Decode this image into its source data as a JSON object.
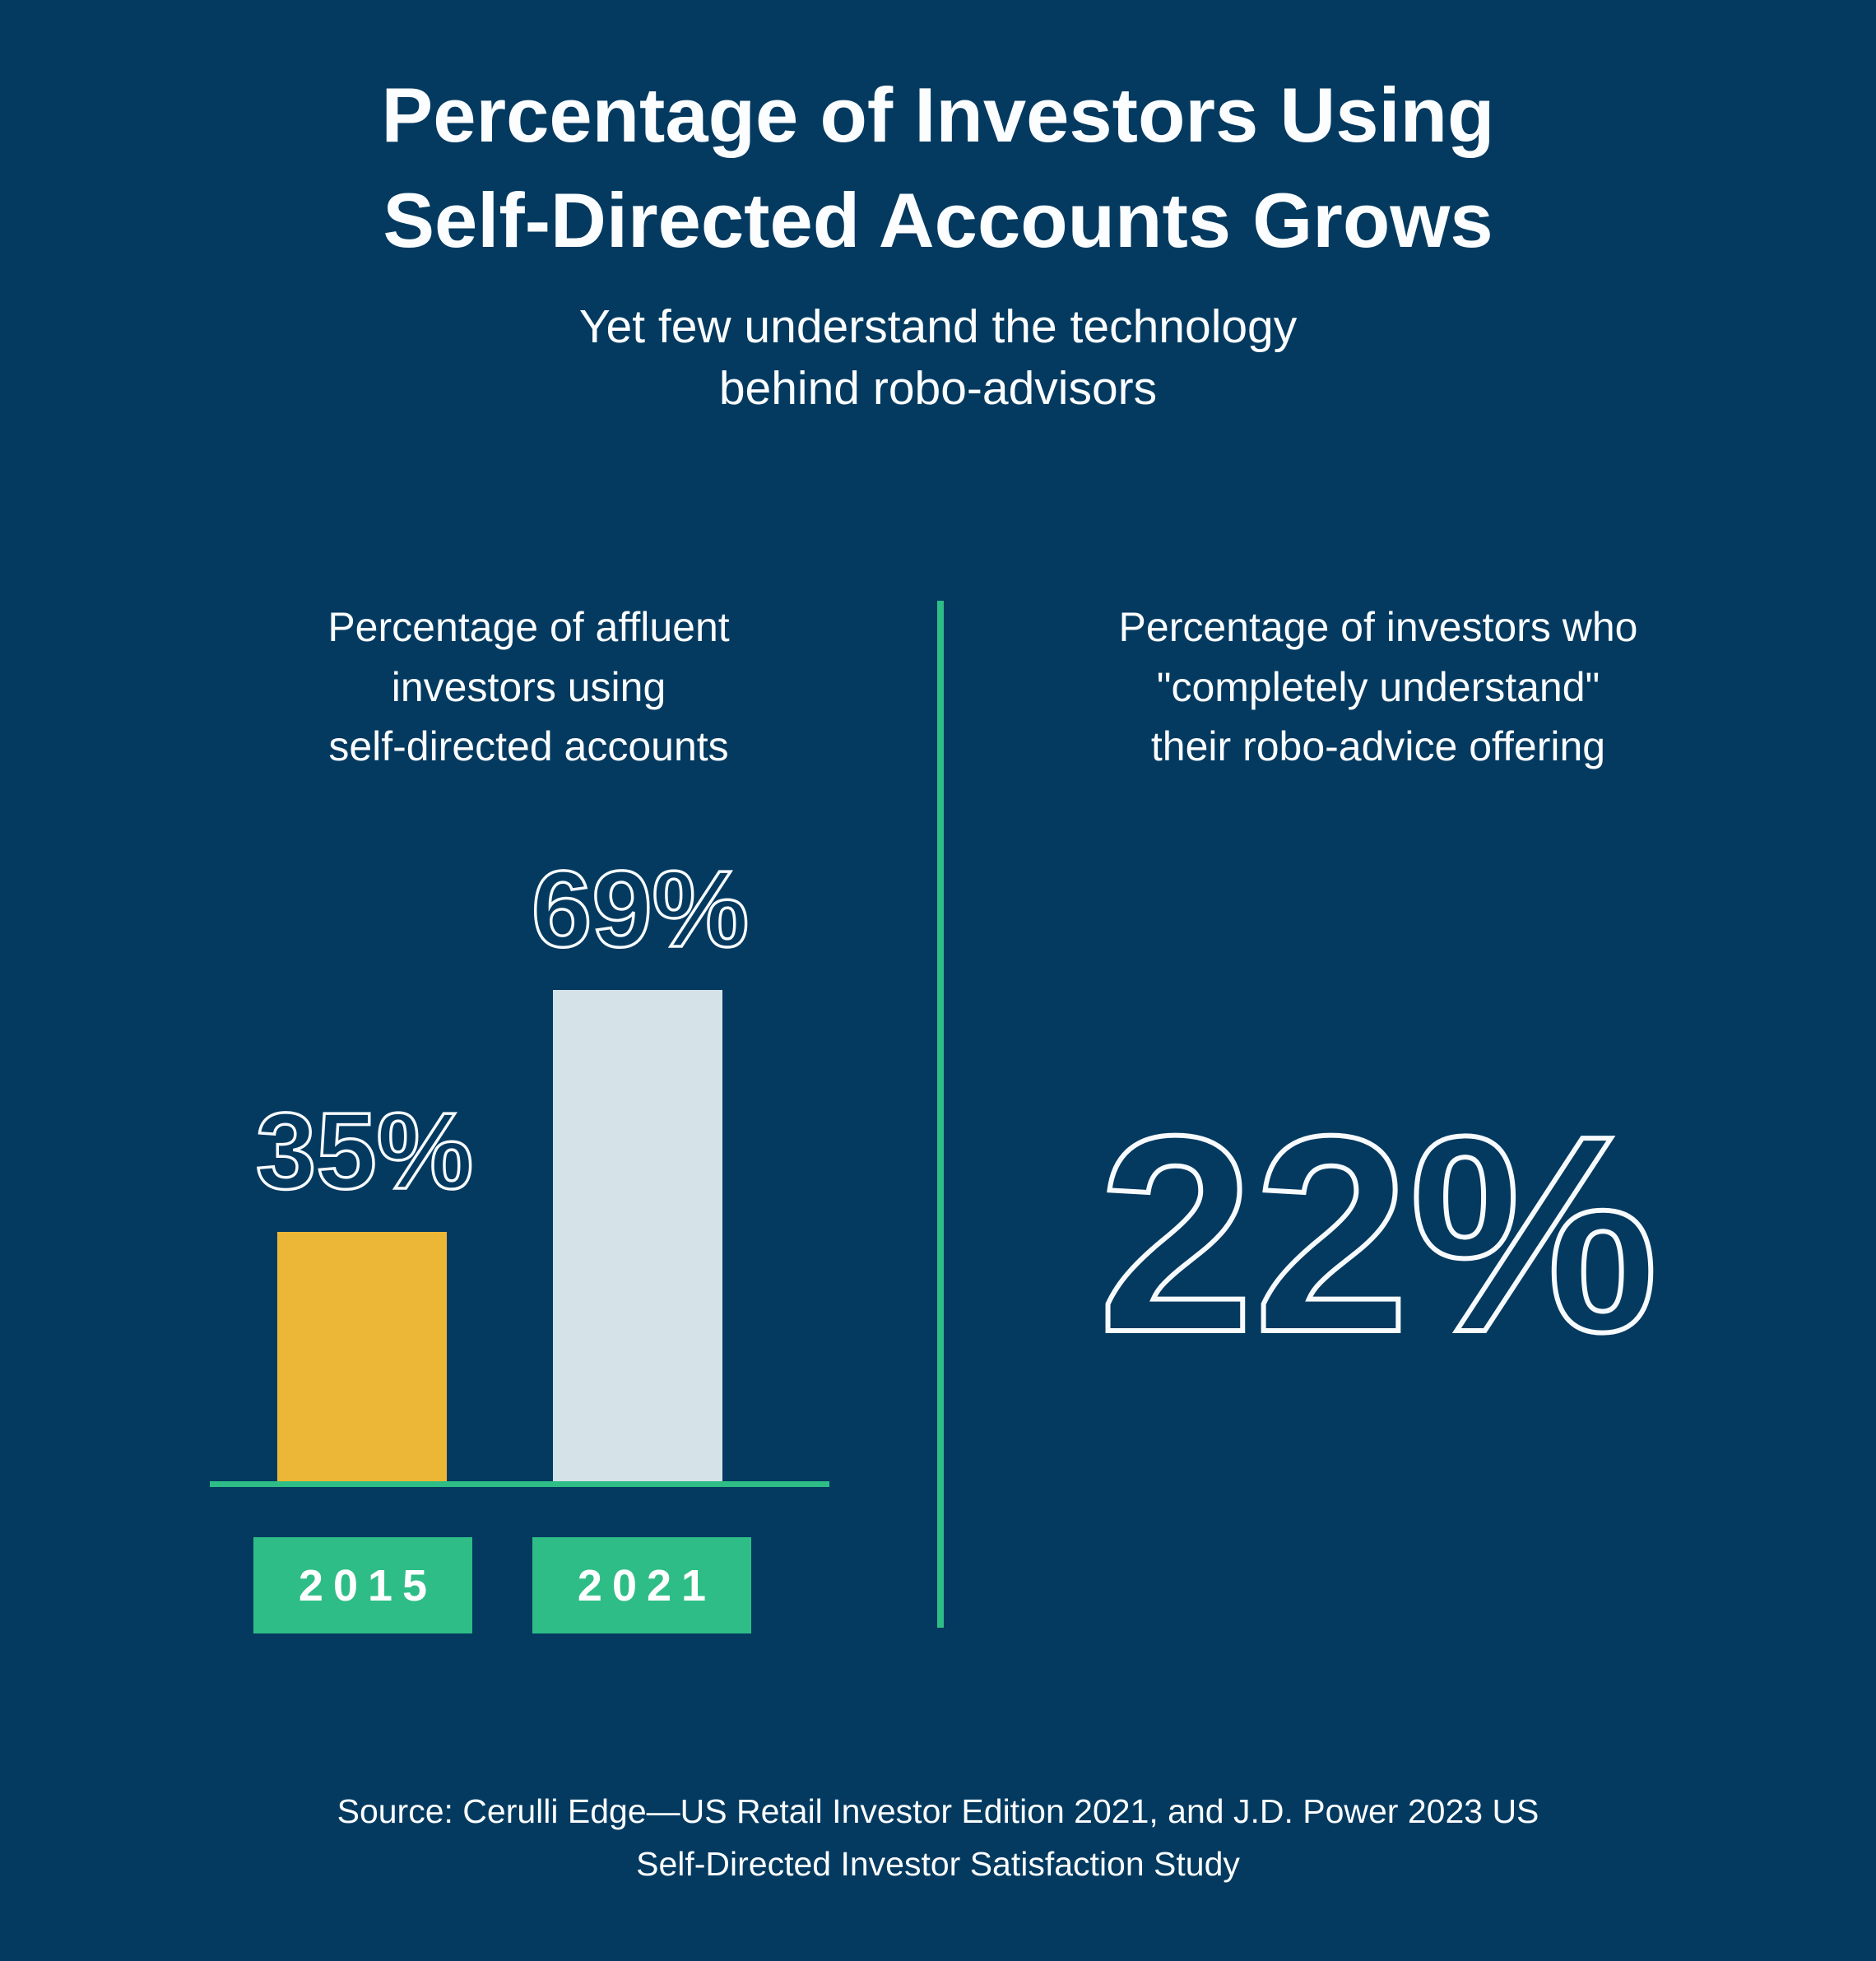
{
  "meta": {
    "background": "#043A60",
    "accent_green": "#2EBD86",
    "bar_yellow": "#ECB737",
    "bar_light_gray": "#D5E2E8",
    "text_white": "#FBFDFE"
  },
  "header": {
    "title_lines": [
      "Percentage of Investors Using",
      "Self-Directed Accounts Grows"
    ],
    "subtitle_lines": [
      "Yet few understand the technology",
      "behind robo-advisors"
    ]
  },
  "left_panel": {
    "heading_lines": [
      "Percentage of affluent",
      "investors using",
      "self-directed accounts"
    ]
  },
  "right_panel": {
    "heading_lines": [
      "Percentage of investors who",
      "\"completely understand\"",
      "their robo-advice offering"
    ],
    "stat": "22%"
  },
  "chart_data": {
    "type": "bar",
    "title": "Percentage of affluent investors using self-directed accounts",
    "categories": [
      "2015",
      "2021"
    ],
    "values": [
      35,
      69
    ],
    "value_labels": [
      "35%",
      "69%"
    ],
    "bar_colors": [
      "#ECB737",
      "#D5E2E8"
    ],
    "ylim": [
      0,
      75
    ],
    "grid": false,
    "legend": "none",
    "baseline_color": "#2EBD86",
    "category_label_style": "green-box"
  },
  "footer": {
    "source_lines": [
      "Source: Cerulli Edge—US Retail Investor Edition 2021, and J.D. Power 2023 US",
      "Self-Directed Investor Satisfaction Study"
    ]
  }
}
